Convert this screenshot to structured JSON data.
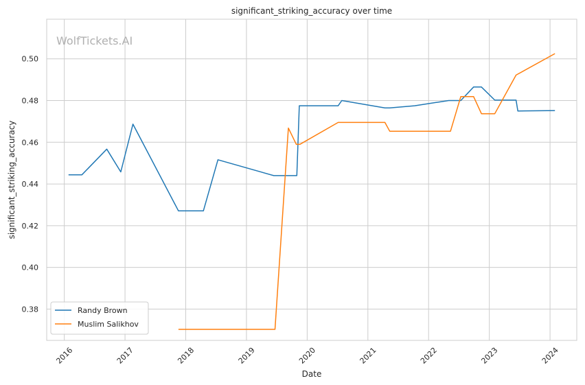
{
  "chart_data": {
    "type": "line",
    "title": "significant_striking_accuracy over time",
    "xlabel": "Date",
    "ylabel": "significant_striking_accuracy",
    "watermark": "WolfTickets.AI",
    "xlim": [
      2015.71,
      2024.44
    ],
    "ylim": [
      0.365,
      0.519
    ],
    "x_ticks": [
      2016,
      2017,
      2018,
      2019,
      2020,
      2021,
      2022,
      2023,
      2024
    ],
    "y_ticks": [
      0.38,
      0.4,
      0.42,
      0.44,
      0.46,
      0.48,
      0.5
    ],
    "y_tick_labels": [
      "0.38",
      "0.40",
      "0.42",
      "0.44",
      "0.46",
      "0.48",
      "0.50"
    ],
    "grid": true,
    "legend_position": "lower-left",
    "series": [
      {
        "name": "Randy Brown",
        "color": "#1f77b4",
        "x": [
          2016.07,
          2016.29,
          2016.7,
          2016.93,
          2017.13,
          2017.88,
          2018.29,
          2018.53,
          2019.45,
          2019.83,
          2019.87,
          2020.51,
          2020.57,
          2021.28,
          2021.36,
          2021.77,
          2022.33,
          2022.53,
          2022.74,
          2022.87,
          2023.09,
          2023.44,
          2023.47,
          2024.08
        ],
        "y": [
          0.4444,
          0.4444,
          0.4567,
          0.4458,
          0.4687,
          0.4271,
          0.4271,
          0.4516,
          0.444,
          0.444,
          0.4775,
          0.4775,
          0.48,
          0.4765,
          0.4765,
          0.4775,
          0.48,
          0.48,
          0.4865,
          0.4865,
          0.4802,
          0.4802,
          0.475,
          0.4752
        ]
      },
      {
        "name": "Muslim Salikhov",
        "color": "#ff7f0e",
        "x": [
          2017.88,
          2019.47,
          2019.69,
          2019.82,
          2019.88,
          2020.51,
          2021.28,
          2021.36,
          2022.36,
          2022.53,
          2022.74,
          2022.87,
          2023.09,
          2023.44,
          2024.08
        ],
        "y": [
          0.3703,
          0.3703,
          0.4668,
          0.459,
          0.459,
          0.4695,
          0.4695,
          0.4653,
          0.4653,
          0.4819,
          0.4819,
          0.4737,
          0.4737,
          0.4922,
          0.5025
        ]
      }
    ]
  }
}
